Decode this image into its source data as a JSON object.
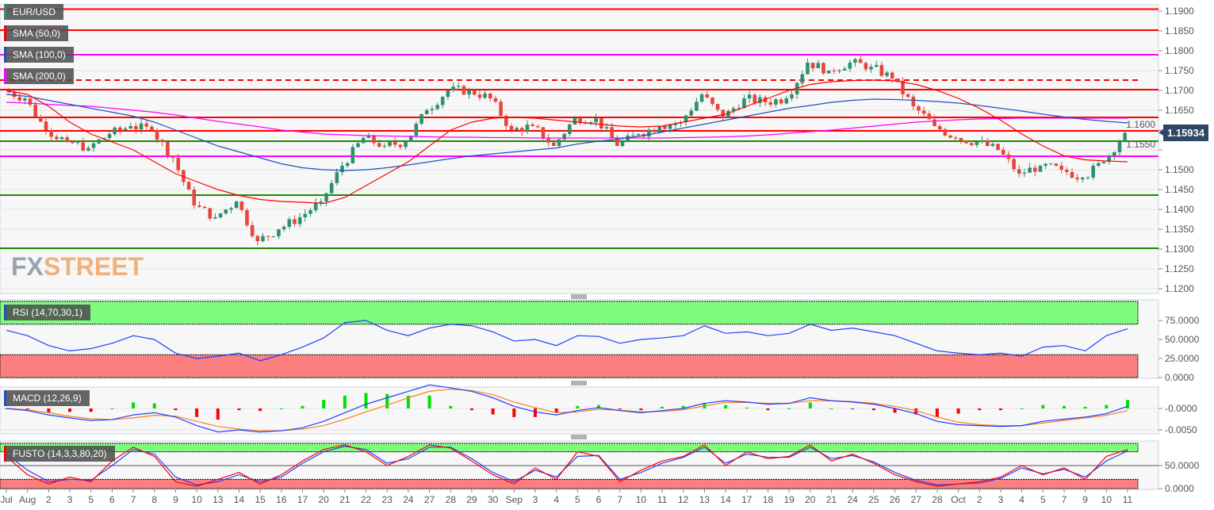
{
  "chart_data": {
    "type": "candlestick",
    "symbol": "EUR/USD",
    "last_price": "1.15934",
    "x_tick_labels": [
      "Jul",
      "Aug",
      "2",
      "3",
      "5",
      "6",
      "7",
      "8",
      "9",
      "10",
      "13",
      "14",
      "15",
      "16",
      "17",
      "20",
      "21",
      "22",
      "23",
      "24",
      "27",
      "28",
      "29",
      "30",
      "Sep",
      "3",
      "4",
      "5",
      "6",
      "7",
      "10",
      "11",
      "12",
      "13",
      "14",
      "17",
      "18",
      "19",
      "20",
      "21",
      "24",
      "25",
      "26",
      "27",
      "28",
      "Oct",
      "2",
      "3",
      "4",
      "5",
      "7",
      "9",
      "10",
      "11"
    ],
    "close": [
      1.17,
      1.168,
      1.16,
      1.157,
      1.1555,
      1.159,
      1.161,
      1.16,
      1.153,
      1.141,
      1.138,
      1.142,
      1.132,
      1.135,
      1.138,
      1.142,
      1.151,
      1.158,
      1.156,
      1.157,
      1.165,
      1.17,
      1.17,
      1.168,
      1.16,
      1.161,
      1.156,
      1.163,
      1.163,
      1.156,
      1.159,
      1.161,
      1.162,
      1.169,
      1.163,
      1.168,
      1.167,
      1.168,
      1.177,
      1.175,
      1.177,
      1.176,
      1.173,
      1.166,
      1.161,
      1.158,
      1.157,
      1.155,
      1.149,
      1.151,
      1.15,
      1.148,
      1.152,
      1.1593
    ],
    "sma50": [
      1.17,
      1.169,
      1.166,
      1.162,
      1.159,
      1.157,
      1.155,
      1.152,
      1.149,
      1.147,
      1.145,
      1.1435,
      1.1425,
      1.142,
      1.1418,
      1.1415,
      1.143,
      1.146,
      1.149,
      1.152,
      1.156,
      1.16,
      1.162,
      1.163,
      1.1632,
      1.163,
      1.1625,
      1.162,
      1.1615,
      1.161,
      1.1608,
      1.161,
      1.162,
      1.163,
      1.164,
      1.166,
      1.168,
      1.17,
      1.1715,
      1.1722,
      1.1725,
      1.1726,
      1.1724,
      1.1715,
      1.17,
      1.168,
      1.1655,
      1.1625,
      1.159,
      1.156,
      1.1535,
      1.1525,
      1.1522,
      1.152
    ],
    "sma100": [
      1.169,
      1.1685,
      1.1675,
      1.1665,
      1.1655,
      1.1645,
      1.1635,
      1.162,
      1.16,
      1.158,
      1.156,
      1.1545,
      1.153,
      1.1515,
      1.1505,
      1.15,
      1.1498,
      1.15,
      1.1505,
      1.1512,
      1.152,
      1.1528,
      1.1535,
      1.154,
      1.1545,
      1.155,
      1.1555,
      1.1565,
      1.1572,
      1.1578,
      1.1585,
      1.1595,
      1.1605,
      1.1615,
      1.1625,
      1.1635,
      1.1645,
      1.1655,
      1.1662,
      1.167,
      1.1675,
      1.1678,
      1.1677,
      1.1675,
      1.1672,
      1.1668,
      1.1662,
      1.1655,
      1.1648,
      1.164,
      1.1633,
      1.1627,
      1.1622,
      1.1618
    ],
    "sma200": [
      1.167,
      1.1668,
      1.1665,
      1.1662,
      1.166,
      1.1655,
      1.165,
      1.1645,
      1.1638,
      1.163,
      1.1622,
      1.1615,
      1.1608,
      1.16,
      1.1595,
      1.159,
      1.1588,
      1.1586,
      1.1585,
      1.1584,
      1.1583,
      1.1582,
      1.1582,
      1.1581,
      1.1581,
      1.158,
      1.158,
      1.158,
      1.158,
      1.158,
      1.158,
      1.158,
      1.1581,
      1.1582,
      1.1583,
      1.1585,
      1.1588,
      1.1592,
      1.1596,
      1.16,
      1.1605,
      1.161,
      1.1615,
      1.162,
      1.1623,
      1.1626,
      1.1628,
      1.1629,
      1.163,
      1.163,
      1.163,
      1.163,
      1.163,
      1.163
    ],
    "levels": [
      {
        "price": 1.1905,
        "color": "#ff0000",
        "style": "solid"
      },
      {
        "price": 1.1852,
        "color": "#ff0000",
        "style": "solid"
      },
      {
        "price": 1.179,
        "color": "#ff00ff",
        "style": "solid"
      },
      {
        "price": 1.1726,
        "color": "#ff0000",
        "style": "dashed"
      },
      {
        "price": 1.1702,
        "color": "#ff0000",
        "style": "solid"
      },
      {
        "price": 1.1632,
        "color": "#ff0000",
        "style": "solid"
      },
      {
        "price": 1.1598,
        "color": "#ff0000",
        "style": "solid"
      },
      {
        "price": 1.1572,
        "color": "#1f8a00",
        "style": "solid"
      },
      {
        "price": 1.1534,
        "color": "#ff00ff",
        "style": "solid"
      },
      {
        "price": 1.1436,
        "color": "#1f8a00",
        "style": "solid"
      },
      {
        "price": 1.1302,
        "color": "#1f8a00",
        "style": "solid"
      }
    ],
    "y_ticks": [
      "1.1900",
      "1.1850",
      "1.1800",
      "1.1750",
      "1.1700",
      "1.1650",
      "1.1600",
      "1.1550",
      "1.1500",
      "1.1450",
      "1.1400",
      "1.1350",
      "1.1300",
      "1.1250",
      "1.1200"
    ],
    "ylim": [
      1.12,
      1.19
    ],
    "rsi": {
      "label": "RSI (14,70,30,1)",
      "overbought": 70,
      "oversold": 30,
      "y_ticks": [
        "75.0000",
        "50.0000",
        "25.0000",
        "0.0000"
      ],
      "values": [
        62,
        55,
        42,
        35,
        38,
        45,
        55,
        50,
        32,
        25,
        28,
        32,
        22,
        30,
        40,
        52,
        72,
        75,
        62,
        55,
        65,
        70,
        68,
        60,
        48,
        50,
        42,
        55,
        54,
        45,
        50,
        52,
        55,
        68,
        58,
        60,
        55,
        58,
        70,
        62,
        65,
        60,
        55,
        45,
        35,
        32,
        30,
        32,
        28,
        40,
        42,
        35,
        55,
        64
      ]
    },
    "macd": {
      "label": "MACD (12,26,9)",
      "y_ticks": [
        "-0.0000",
        "-0.0050"
      ],
      "macd": [
        0.0,
        -0.0005,
        -0.0015,
        -0.0022,
        -0.0028,
        -0.0026,
        -0.0015,
        -0.001,
        -0.002,
        -0.004,
        -0.0055,
        -0.005,
        -0.0055,
        -0.0052,
        -0.0045,
        -0.003,
        -0.001,
        0.001,
        0.0025,
        0.004,
        0.0055,
        0.0048,
        0.004,
        0.0025,
        0.0005,
        -0.0008,
        -0.0015,
        -0.0005,
        0.0002,
        -0.0005,
        -0.001,
        -0.0005,
        0.0,
        0.0012,
        0.0018,
        0.0015,
        0.001,
        0.0012,
        0.0025,
        0.0018,
        0.0015,
        0.001,
        0.0,
        -0.0012,
        -0.003,
        -0.0038,
        -0.004,
        -0.0042,
        -0.004,
        -0.003,
        -0.0025,
        -0.002,
        -0.0012,
        0.0005
      ],
      "signal": [
        0.0,
        -0.0003,
        -0.001,
        -0.0018,
        -0.0024,
        -0.0026,
        -0.0022,
        -0.0016,
        -0.0018,
        -0.003,
        -0.0042,
        -0.0048,
        -0.0052,
        -0.0052,
        -0.0048,
        -0.004,
        -0.0025,
        -0.0008,
        0.0008,
        0.0025,
        0.004,
        0.0045,
        0.0042,
        0.0032,
        0.0015,
        0.0002,
        -0.001,
        -0.0008,
        -0.0002,
        -0.0004,
        -0.0008,
        -0.0007,
        -0.0003,
        0.0006,
        0.0014,
        0.0014,
        0.0012,
        0.0012,
        0.0018,
        0.0018,
        0.0016,
        0.0012,
        0.0005,
        -0.0005,
        -0.002,
        -0.0032,
        -0.0038,
        -0.004,
        -0.004,
        -0.0034,
        -0.0028,
        -0.0022,
        -0.0016,
        -0.0005
      ],
      "colors": {
        "macd": "#1f3fff",
        "signal": "#ff7f1f",
        "hist_up": "#00e000",
        "hist_down": "#ff0000"
      }
    },
    "fusto": {
      "label": "FUSTO (14,3,3,80,20)",
      "overbought": 80,
      "oversold": 20,
      "y_ticks": [
        "50.0000",
        "0.0000"
      ],
      "k": [
        70,
        30,
        10,
        25,
        15,
        60,
        90,
        70,
        15,
        5,
        20,
        35,
        10,
        30,
        60,
        85,
        95,
        80,
        50,
        70,
        95,
        88,
        60,
        30,
        10,
        45,
        20,
        80,
        70,
        15,
        40,
        60,
        70,
        95,
        50,
        80,
        65,
        70,
        95,
        60,
        75,
        55,
        30,
        15,
        5,
        10,
        15,
        25,
        50,
        30,
        45,
        20,
        70,
        85
      ],
      "d": [
        75,
        40,
        15,
        20,
        18,
        50,
        85,
        75,
        25,
        8,
        15,
        30,
        15,
        25,
        55,
        80,
        92,
        85,
        55,
        65,
        90,
        90,
        65,
        35,
        15,
        40,
        25,
        70,
        72,
        20,
        35,
        55,
        68,
        90,
        55,
        75,
        68,
        68,
        90,
        65,
        72,
        58,
        35,
        18,
        8,
        10,
        12,
        22,
        45,
        32,
        42,
        25,
        60,
        82
      ],
      "colors": {
        "k": "#ff0000",
        "d": "#1f3fff"
      }
    },
    "candle_colors": {
      "up": "#2f8f6f",
      "down": "#e8453c"
    },
    "sma_colors": {
      "sma50": "#ff0000",
      "sma100": "#2050c0",
      "sma200": "#ff00ff"
    }
  },
  "legend": {
    "symbol": "EUR/USD",
    "sma50": "SMA (50,0)",
    "sma100": "SMA (100,0)",
    "sma200": "SMA (200,0)"
  },
  "watermark": {
    "fx": "FX",
    "street": "STREET"
  }
}
